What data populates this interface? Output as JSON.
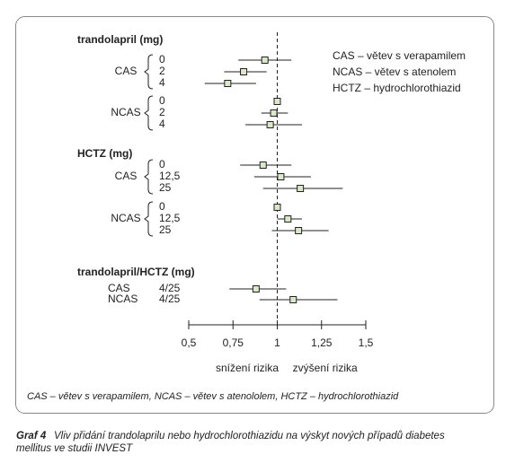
{
  "chart_data": {
    "type": "forest",
    "legend": [
      "CAS – větev s verapamilem",
      "NCAS – větev s atenolem",
      "HCTZ – hydrochlorothiazid"
    ],
    "groups": [
      {
        "title": "trandolapril (mg)",
        "subgroups": [
          {
            "name": "CAS",
            "rows": [
              {
                "label": "0",
                "estimate": 0.93,
                "low": 0.78,
                "high": 1.08
              },
              {
                "label": "2",
                "estimate": 0.81,
                "low": 0.7,
                "high": 0.94
              },
              {
                "label": "4",
                "estimate": 0.72,
                "low": 0.59,
                "high": 0.88
              }
            ]
          },
          {
            "name": "NCAS",
            "rows": [
              {
                "label": "0",
                "estimate": 1,
                "low": null,
                "high": null
              },
              {
                "label": "2",
                "estimate": 0.98,
                "low": 0.91,
                "high": 1.06
              },
              {
                "label": "4",
                "estimate": 0.96,
                "low": 0.82,
                "high": 1.14
              }
            ]
          }
        ]
      },
      {
        "title": "HCTZ (mg)",
        "subgroups": [
          {
            "name": "CAS",
            "rows": [
              {
                "label": "0",
                "estimate": 0.92,
                "low": 0.79,
                "high": 1.08
              },
              {
                "label": "12,5",
                "estimate": 1.02,
                "low": 0.87,
                "high": 1.19
              },
              {
                "label": "25",
                "estimate": 1.13,
                "low": 0.92,
                "high": 1.37
              }
            ]
          },
          {
            "name": "NCAS",
            "rows": [
              {
                "label": "0",
                "estimate": 1,
                "low": null,
                "high": null
              },
              {
                "label": "12,5",
                "estimate": 1.06,
                "low": 1,
                "high": 1.14
              },
              {
                "label": "25",
                "estimate": 1.12,
                "low": 0.97,
                "high": 1.29
              }
            ]
          }
        ]
      },
      {
        "title": "trandolapril/HCTZ (mg)",
        "subgroups": [
          {
            "name": "CAS",
            "rows": [
              {
                "label": "4/25",
                "estimate": 0.88,
                "low": 0.73,
                "high": 1.05
              }
            ]
          },
          {
            "name": "NCAS",
            "rows": [
              {
                "label": "4/25",
                "estimate": 1.09,
                "low": 0.9,
                "high": 1.34
              }
            ]
          }
        ]
      }
    ],
    "ref_line": 1,
    "xlim": [
      0.5,
      1.5
    ],
    "xticks": [
      {
        "value": 0.5,
        "label": "0,5"
      },
      {
        "value": 0.75,
        "label": "0,75"
      },
      1,
      {
        "value": 1.25,
        "label": "1,25"
      },
      {
        "value": 1.5,
        "label": "1,5"
      }
    ],
    "left_note": "snížení rizika",
    "right_note": "zvýšení rizika",
    "footnote": "CAS – větev s verapamilem, NCAS – větev s atenololem, HCTZ – hydrochlorothiazid",
    "marker_color": "#d9e8c6",
    "caption_label": "Graf 4",
    "caption": [
      "Vliv přidání trandolaprilu nebo hydrochlorothiazidu na výskyt nových případů diabetes",
      "mellitus ve studii INVEST"
    ]
  }
}
